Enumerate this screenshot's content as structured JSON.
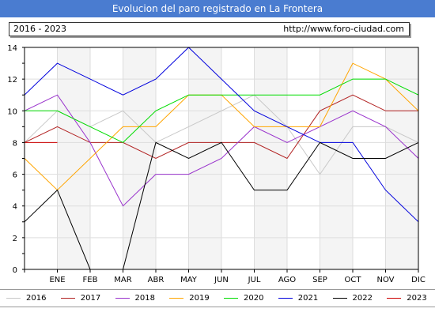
{
  "header": {
    "title": "Evolucion del paro registrado en La Frontera",
    "period": "2016 - 2023",
    "url": "http://www.foro-ciudad.com"
  },
  "chart_data": {
    "type": "line",
    "categories": [
      "",
      "ENE",
      "FEB",
      "MAR",
      "ABR",
      "MAY",
      "JUN",
      "JUL",
      "AGO",
      "SEP",
      "OCT",
      "NOV",
      "DIC"
    ],
    "ylim": [
      0,
      14
    ],
    "yticks": [
      0,
      2,
      4,
      6,
      8,
      10,
      12,
      14
    ],
    "grid": true,
    "legend_position": "bottom",
    "series": [
      {
        "name": "2016",
        "color": "#c8c8c8",
        "values": [
          8,
          10,
          9,
          10,
          8,
          9,
          10,
          11,
          9,
          6,
          9,
          9,
          8
        ]
      },
      {
        "name": "2017",
        "color": "#b22222",
        "values": [
          8,
          9,
          8,
          8,
          7,
          8,
          8,
          8,
          7,
          10,
          11,
          10,
          10
        ]
      },
      {
        "name": "2018",
        "color": "#9932cc",
        "values": [
          10,
          11,
          8,
          4,
          6,
          6,
          7,
          9,
          8,
          9,
          10,
          9,
          7
        ]
      },
      {
        "name": "2019",
        "color": "#ffa500",
        "values": [
          7,
          5,
          7,
          9,
          9,
          11,
          11,
          9,
          9,
          9,
          13,
          12,
          10
        ]
      },
      {
        "name": "2020",
        "color": "#00dd00",
        "values": [
          10,
          10,
          9,
          8,
          10,
          11,
          11,
          11,
          11,
          11,
          12,
          12,
          11
        ]
      },
      {
        "name": "2021",
        "color": "#0000dd",
        "values": [
          11,
          13,
          12,
          11,
          12,
          14,
          12,
          10,
          9,
          8,
          8,
          5,
          3
        ]
      },
      {
        "name": "2022",
        "color": "#000000",
        "values": [
          3,
          5,
          0,
          0,
          8,
          7,
          8,
          5,
          5,
          8,
          7,
          7,
          8
        ]
      },
      {
        "name": "2023",
        "color": "#cc0000",
        "values": [
          8,
          8,
          null,
          null,
          null,
          null,
          null,
          null,
          null,
          null,
          null,
          null,
          null
        ]
      }
    ]
  }
}
